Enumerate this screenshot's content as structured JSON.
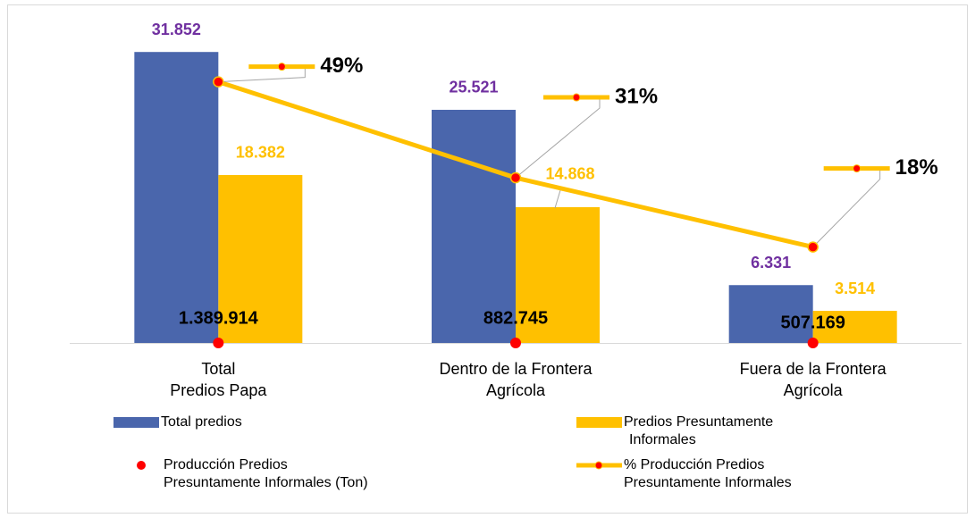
{
  "chart_data": {
    "type": "bar",
    "categories": [
      "Total\nPredios Papa",
      "Dentro de la Frontera\nAgrícola",
      "Fuera de la Frontera\nAgrícola"
    ],
    "ylim": [
      0,
      35000
    ],
    "y2lim": [
      0,
      60
    ],
    "series": [
      {
        "name": "Total predios",
        "type": "bar",
        "color": "#4a66ac",
        "label_color": "#7030a0",
        "values": [
          31852,
          25521,
          6331
        ],
        "value_labels": [
          "31.852",
          "25.521",
          "6.331"
        ]
      },
      {
        "name": "Predios Presuntamente\nInformales",
        "type": "bar",
        "color": "#ffc000",
        "label_color": "#ffc000",
        "values": [
          18382,
          14868,
          3514
        ],
        "value_labels": [
          "18.382",
          "14.868",
          "3.514"
        ]
      },
      {
        "name": "Producción Predios\nPresuntamente Informales (Ton)",
        "type": "scatter",
        "color": "#ff0000",
        "label_color": "#000000",
        "values": [
          1389914,
          882745,
          507169
        ],
        "value_labels": [
          "1.389.914",
          "882.745",
          "507.169"
        ]
      },
      {
        "name": "% Producción Predios\nPresuntamente Informales",
        "type": "line",
        "axis": "y2",
        "color": "#ffc000",
        "marker_color": "#ff0000",
        "label_color": "#000000",
        "values": [
          49,
          31,
          18
        ],
        "value_labels": [
          "49%",
          "31%",
          "18%"
        ]
      }
    ]
  }
}
